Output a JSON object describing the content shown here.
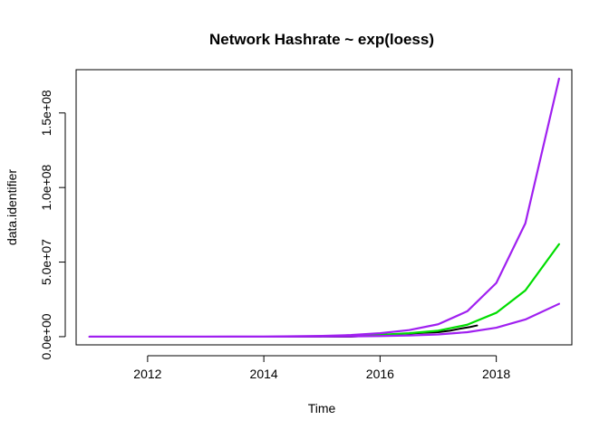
{
  "chart_data": {
    "type": "line",
    "title": "Network Hashrate ~ exp(loess)",
    "xlabel": "Time",
    "ylabel": "data.identifier",
    "xlim": [
      2010.77,
      2019.3
    ],
    "ylim": [
      -5500000,
      179000000
    ],
    "x_ticks": [
      {
        "value": 2012,
        "label": "2012"
      },
      {
        "value": 2014,
        "label": "2014"
      },
      {
        "value": 2016,
        "label": "2016"
      },
      {
        "value": 2018,
        "label": "2018"
      }
    ],
    "y_ticks": [
      {
        "value": 0,
        "label": "0.0e+00"
      },
      {
        "value": 50000000,
        "label": "5.0e+07"
      },
      {
        "value": 100000000,
        "label": "1.0e+08"
      },
      {
        "value": 150000000,
        "label": "1.5e+08"
      }
    ],
    "grid": false,
    "legend": "none",
    "series": [
      {
        "color": "#000000",
        "x": [
          2011.0,
          2012.0,
          2013.0,
          2014.0,
          2015.0,
          2015.5,
          2016.0,
          2016.25,
          2016.5,
          2016.75,
          2017.0,
          2017.2,
          2017.4,
          2017.55,
          2017.67
        ],
        "y": [
          0,
          0,
          10,
          200,
          400,
          600,
          1200000,
          1600000,
          2000000,
          2600000,
          3000000,
          4000000,
          5500000,
          6500000,
          7500000
        ]
      },
      {
        "color": "#00DD00",
        "x": [
          2015.0,
          2015.5,
          2016.0,
          2016.5,
          2017.0,
          2017.5,
          2018.0,
          2018.5,
          2019.08
        ],
        "y": [
          200000,
          500000,
          1200000,
          2300000,
          4000000,
          8000000,
          16000000,
          31000000,
          62000000
        ]
      },
      {
        "color": "#A020F0",
        "x": [
          2011.0,
          2012.0,
          2013.0,
          2014.0,
          2015.0,
          2015.5,
          2016.0,
          2016.5,
          2017.0,
          2017.5,
          2018.0,
          2018.5,
          2019.08
        ],
        "y": [
          0,
          0,
          0,
          50000,
          500000,
          1100000,
          2300000,
          4400000,
          8300000,
          17000000,
          36000000,
          76000000,
          173000000
        ]
      },
      {
        "color": "#A020F0",
        "x": [
          2011.0,
          2012.0,
          2013.0,
          2014.0,
          2015.0,
          2015.5,
          2016.0,
          2016.5,
          2017.0,
          2017.5,
          2018.0,
          2018.5,
          2019.08
        ],
        "y": [
          0,
          0,
          0,
          10000,
          100000,
          200000,
          400000,
          800000,
          1500000,
          3000000,
          6000000,
          11500000,
          22000000
        ]
      }
    ]
  }
}
